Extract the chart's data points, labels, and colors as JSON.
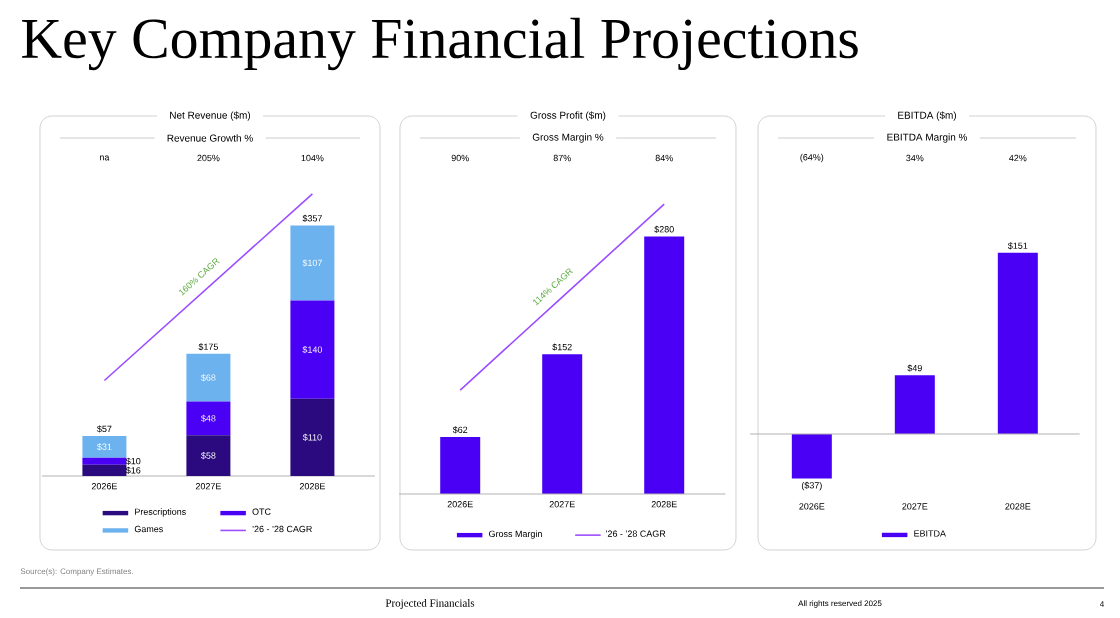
{
  "chart_data": [
    {
      "type": "bar",
      "title": "Net Revenue ($m)",
      "subtitle": "Revenue Growth %",
      "categories": [
        "2026E",
        "2027E",
        "2028E"
      ],
      "stacked": true,
      "legend": "bottom",
      "series": [
        {
          "name": "Prescriptions",
          "color": "#2a0a7e",
          "values": [
            16,
            58,
            110
          ],
          "value_labels": [
            "$16",
            "$58",
            "$110"
          ]
        },
        {
          "name": "OTC",
          "color": "#4a00f5",
          "values": [
            10,
            48,
            140
          ],
          "value_labels": [
            "$10",
            "$48",
            "$140"
          ]
        },
        {
          "name": "Games",
          "color": "#6cb2ee",
          "values": [
            31,
            68,
            107
          ],
          "value_labels": [
            "$31",
            "$68",
            "$107"
          ]
        },
        {
          "name": "’26 - ’28 CAGR",
          "type": "line",
          "color": "#9b4dff",
          "values": [
            136,
            269,
            402
          ]
        }
      ],
      "totals": [
        "$57",
        "$175",
        "$357"
      ],
      "annotations": [
        "Key Company Financial Projections",
        "Source(s): Company Estimates.",
        "Projected Financials",
        "All rights reserved 2025",
        "4",
        "na",
        "205%",
        "104%",
        "160% CAGR"
      ]
    },
    {
      "type": "bar",
      "title": "Gross Profit ($m)",
      "subtitle": "Gross Margin %",
      "categories": [
        "2026E",
        "2027E",
        "2028E"
      ],
      "legend": "bottom",
      "series": [
        {
          "name": "Gross Margin",
          "color": "#4a00f5",
          "values": [
            62,
            152,
            280
          ],
          "value_labels": [
            "$62",
            "$152",
            "$280"
          ]
        },
        {
          "name": "’26 - ’28 CAGR",
          "type": "line",
          "color": "#9b4dff",
          "values": [
            113,
            214,
            315
          ]
        }
      ],
      "annotations": [
        "90%",
        "87%",
        "84%",
        "114% CAGR"
      ]
    },
    {
      "type": "bar",
      "title": "EBITDA ($m)",
      "subtitle": "EBITDA Margin %",
      "categories": [
        "2026E",
        "2027E",
        "2028E"
      ],
      "legend": "bottom",
      "series": [
        {
          "name": "EBITDA",
          "color": "#4a00f5",
          "values": [
            -37,
            49,
            151
          ],
          "value_labels": [
            "($37)",
            "$49",
            "$151"
          ]
        }
      ],
      "annotations": [
        "(64%)",
        "34%",
        "42%"
      ]
    }
  ]
}
